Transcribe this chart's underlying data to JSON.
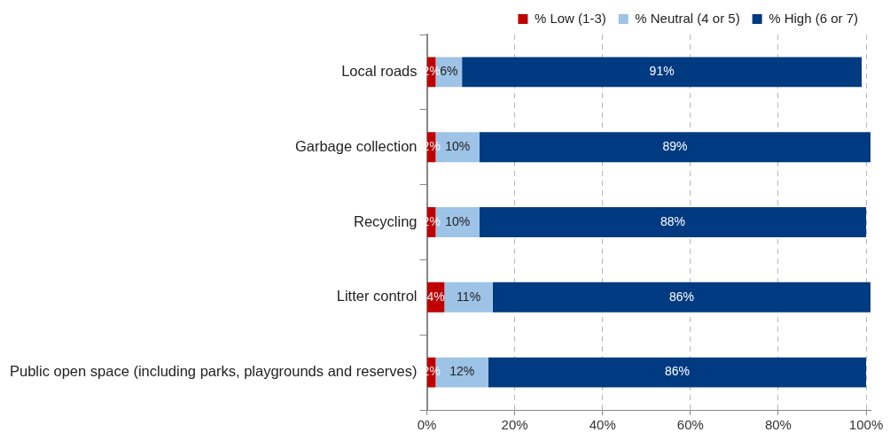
{
  "chart_data": {
    "type": "bar",
    "orientation": "horizontal",
    "stacked": true,
    "grid": "x",
    "legend": "top",
    "categories": [
      "Local roads",
      "Garbage collection",
      "Recycling",
      "Litter control",
      "Public open space (including parks, playgrounds and reserves)"
    ],
    "series": [
      {
        "name": "% Low (1-3)",
        "color": "#c00000",
        "values": [
          2,
          2,
          2,
          4,
          2
        ],
        "value_labels": [
          "2%",
          "2%",
          "2%",
          "4%",
          "2%"
        ]
      },
      {
        "name": "% Neutral (4 or 5)",
        "color": "#9dc3e6",
        "values": [
          6,
          10,
          10,
          11,
          12
        ],
        "value_labels": [
          "6%",
          "10%",
          "10%",
          "11%",
          "12%"
        ]
      },
      {
        "name": "% High (6 or 7)",
        "color": "#003a80",
        "values": [
          91,
          89,
          88,
          86,
          86
        ],
        "value_labels": [
          "91%",
          "89%",
          "88%",
          "86%",
          "86%"
        ]
      }
    ],
    "xlim": [
      0,
      101
    ],
    "xticks": [
      {
        "value": 0,
        "label": "0%"
      },
      {
        "value": 20,
        "label": "20%"
      },
      {
        "value": 40,
        "label": "40%"
      },
      {
        "value": 60,
        "label": "60%"
      },
      {
        "value": 80,
        "label": "80%"
      },
      {
        "value": 100,
        "label": "100%"
      }
    ]
  }
}
